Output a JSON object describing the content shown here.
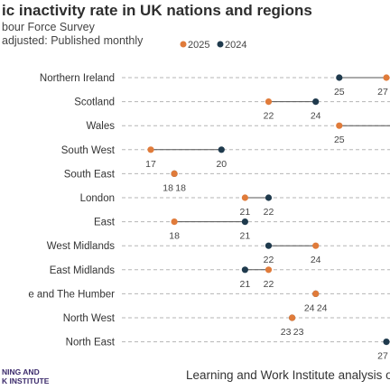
{
  "title": "ic inactivity rate in UK nations and regions",
  "subtitle_lines": [
    "bour Force Survey",
    "adjusted: Published monthly"
  ],
  "footer": {
    "source": "Learning and Work Institute analysis of",
    "logo_line1": "NING AND",
    "logo_line2": "K INSTITUTE"
  },
  "colors": {
    "series_2025": "#e07b3a",
    "series_2024": "#1f3a4d",
    "connector": "#555555",
    "gridline": "#b5b5b5"
  },
  "chart_data": {
    "type": "dumbbell",
    "title": "ic inactivity rate in UK nations and regions",
    "legend_position": "top",
    "grid": "dashed horizontal",
    "categories": [
      "Northern Ireland",
      "Scotland",
      "Wales",
      "South West",
      "South East",
      "London",
      "East",
      "West Midlands",
      "East Midlands",
      "e and The Humber",
      "North West",
      "North East"
    ],
    "series": [
      {
        "name": "2025",
        "values": [
          27,
          22,
          25,
          17,
          18,
          21,
          18,
          24,
          22,
          24,
          23,
          null
        ]
      },
      {
        "name": "2024",
        "values": [
          25,
          24,
          null,
          20,
          18,
          22,
          21,
          22,
          21,
          24,
          23,
          27
        ]
      }
    ],
    "xlim": [
      17,
      27
    ]
  }
}
